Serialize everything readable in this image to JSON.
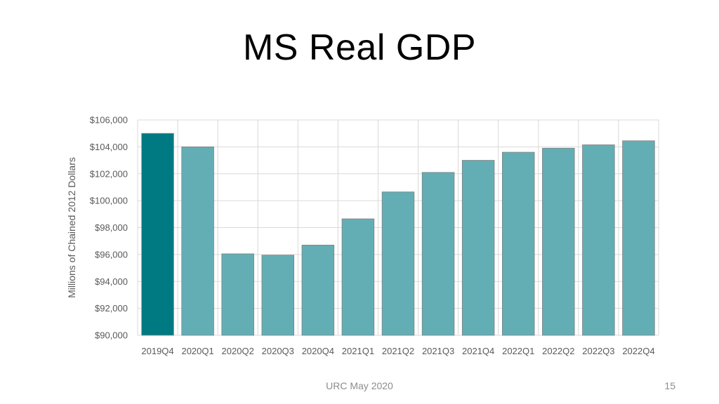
{
  "slide": {
    "title": "MS Real GDP",
    "footer": "URC May 2020",
    "page_number": "15"
  },
  "colors": {
    "highlight_bar": "#007a82",
    "bar": "#63aeb5",
    "bar_stroke": "#7f7f7f",
    "grid": "#d9d9d9",
    "axis_text": "#595959"
  },
  "chart_data": {
    "type": "bar",
    "title": "",
    "xlabel": "",
    "ylabel": "Millions of Chained 2012 Dollars",
    "ylim": [
      90000,
      106000
    ],
    "y_ticks": [
      90000,
      92000,
      94000,
      96000,
      98000,
      100000,
      102000,
      104000,
      106000
    ],
    "y_tick_labels": [
      "$90,000",
      "$92,000",
      "$94,000",
      "$96,000",
      "$98,000",
      "$100,000",
      "$102,000",
      "$104,000",
      "$106,000"
    ],
    "grid": true,
    "categories": [
      "2019Q4",
      "2020Q1",
      "2020Q2",
      "2020Q3",
      "2020Q4",
      "2021Q1",
      "2021Q2",
      "2021Q3",
      "2021Q4",
      "2022Q1",
      "2022Q2",
      "2022Q3",
      "2022Q4"
    ],
    "values": [
      105000,
      104000,
      96050,
      95950,
      96700,
      98650,
      100650,
      102100,
      103000,
      103600,
      103900,
      104150,
      104450
    ],
    "highlight_index": 0
  }
}
